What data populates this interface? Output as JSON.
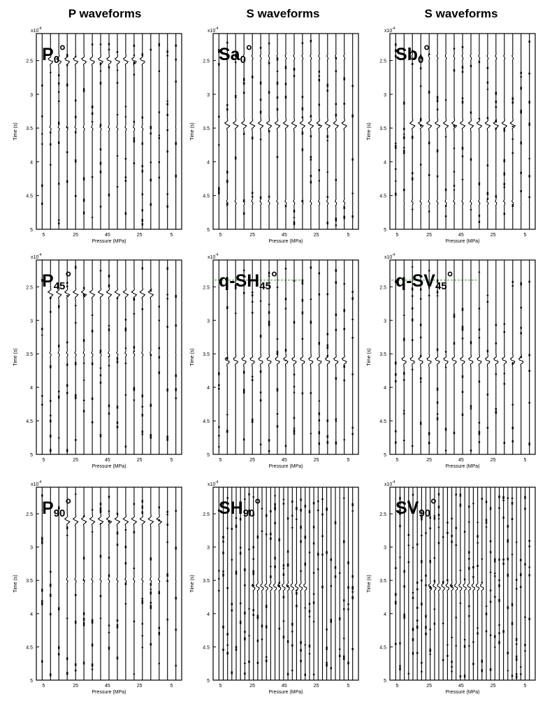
{
  "column_titles": [
    "P waveforms",
    "S waveforms",
    "S waveforms"
  ],
  "chart_data": [
    {
      "type": "line",
      "title_main": "P",
      "title_sub": "0",
      "title_deg": "°",
      "exponent": "x10",
      "exponent_power": "-4",
      "ylabel": "Time (s)",
      "xlabel": "Pressure (MPa)",
      "ylim": [
        2.1,
        5
      ],
      "yticks": [
        "2.5",
        "3",
        "3.5",
        "4",
        "4.5",
        "5"
      ],
      "xtick_labels": [
        "5",
        "25",
        "45",
        "25",
        "5"
      ],
      "arrival": 2.5,
      "reference_line": null,
      "traces": 17,
      "active_trace_range": [
        1,
        12
      ],
      "secondary": [
        {
          "t": 3.5,
          "amp": 0.3
        }
      ]
    },
    {
      "type": "line",
      "title_main": "Sa",
      "title_sub": "0",
      "title_deg": "°",
      "exponent": "x10",
      "exponent_power": "-4",
      "ylabel": "Time (s)",
      "xlabel": "Pressure (MPa)",
      "ylim": [
        2.1,
        5
      ],
      "yticks": [
        "2.5",
        "3",
        "3.5",
        "4",
        "4.5",
        "5"
      ],
      "xtick_labels": [
        "5",
        "25",
        "45",
        "25",
        "5"
      ],
      "arrival": 3.45,
      "reference_line": null,
      "traces": 17,
      "active_trace_range": [
        1,
        15
      ],
      "secondary": [
        {
          "t": 2.45,
          "amp": 0.25
        },
        {
          "t": 4.6,
          "amp": 0.3
        }
      ]
    },
    {
      "type": "line",
      "title_main": "Sb",
      "title_sub": "0",
      "title_deg": "°",
      "exponent": "x10",
      "exponent_power": "-4",
      "ylabel": "Time (s)",
      "xlabel": "Pressure (MPa)",
      "ylim": [
        2.1,
        5
      ],
      "yticks": [
        "2.5",
        "3",
        "3.5",
        "4",
        "4.5",
        "5"
      ],
      "xtick_labels": [
        "5",
        "25",
        "45",
        "25",
        "5"
      ],
      "arrival": 3.45,
      "reference_line": null,
      "traces": 17,
      "active_trace_range": [
        2,
        14
      ],
      "secondary": [
        {
          "t": 2.45,
          "amp": 0.25
        },
        {
          "t": 4.6,
          "amp": 0.3
        }
      ]
    },
    {
      "type": "line",
      "title_main": "P",
      "title_sub": "45",
      "title_deg": "°",
      "exponent": "x10",
      "exponent_power": "-4",
      "ylabel": "Time (s)",
      "xlabel": "Pressure (MPa)",
      "ylim": [
        2.1,
        5
      ],
      "yticks": [
        "2.5",
        "3",
        "3.5",
        "4",
        "4.5",
        "5"
      ],
      "xtick_labels": [
        "5",
        "25",
        "45",
        "25",
        "5"
      ],
      "arrival": 2.6,
      "reference_line": null,
      "traces": 17,
      "active_trace_range": [
        1,
        13
      ],
      "secondary": [
        {
          "t": 3.5,
          "amp": 0.3
        }
      ]
    },
    {
      "type": "line",
      "title_main": "q-SH",
      "title_sub": "45",
      "title_deg": "°",
      "exponent": "x10",
      "exponent_power": "-4",
      "ylabel": "Time (s)",
      "xlabel": "Pressure (MPa)",
      "ylim": [
        2.1,
        5
      ],
      "yticks": [
        "2.5",
        "3",
        "3.5",
        "4",
        "4.5",
        "5"
      ],
      "xtick_labels": [
        "5",
        "25",
        "45",
        "25",
        "5"
      ],
      "arrival": 3.6,
      "reference_line": 2.4,
      "traces": 17,
      "active_trace_range": [
        1,
        15
      ],
      "secondary": []
    },
    {
      "type": "line",
      "title_main": "q-SV",
      "title_sub": "45",
      "title_deg": "°",
      "exponent": "x10",
      "exponent_power": "-4",
      "ylabel": "Time (s)",
      "xlabel": "Pressure (MPa)",
      "ylim": [
        2.1,
        5
      ],
      "yticks": [
        "2.5",
        "3",
        "3.5",
        "4",
        "4.5",
        "5"
      ],
      "xtick_labels": [
        "5",
        "25",
        "45",
        "25",
        "5"
      ],
      "arrival": 3.6,
      "reference_line": 2.4,
      "traces": 17,
      "active_trace_range": [
        1,
        15
      ],
      "secondary": []
    },
    {
      "type": "line",
      "title_main": "P",
      "title_sub": "90",
      "title_deg": "°",
      "exponent": "x10",
      "exponent_power": "-4",
      "ylabel": "Time (s)",
      "xlabel": "Pressure (MPa)",
      "ylim": [
        2.1,
        5
      ],
      "yticks": [
        "2.5",
        "3",
        "3.5",
        "4",
        "4.5",
        "5"
      ],
      "xtick_labels": [
        "5",
        "25",
        "45",
        "25",
        "5"
      ],
      "arrival": 2.6,
      "reference_line": null,
      "traces": 17,
      "active_trace_range": [
        3,
        14
      ],
      "secondary": [
        {
          "t": 3.5,
          "amp": 0.3
        }
      ]
    },
    {
      "type": "line",
      "title_main": "SH",
      "title_sub": "90",
      "title_deg": "°",
      "exponent": "x10",
      "exponent_power": "-4",
      "ylabel": "Time (s)",
      "xlabel": "Pressure (MPa)",
      "ylim": [
        2.1,
        5
      ],
      "yticks": [
        "2.5",
        "3",
        "3.5",
        "4",
        "4.5",
        "5"
      ],
      "xtick_labels": [
        "5",
        "25",
        "45",
        "25",
        "5"
      ],
      "arrival": 3.6,
      "reference_line": null,
      "traces": 32,
      "active_trace_range": [
        8,
        20
      ],
      "secondary": []
    },
    {
      "type": "line",
      "title_main": "SV",
      "title_sub": "90",
      "title_deg": "°",
      "exponent": "x10",
      "exponent_power": "-4",
      "ylabel": "Time (s)",
      "xlabel": "Pressure (MPa)",
      "ylim": [
        2.1,
        5
      ],
      "yticks": [
        "2.5",
        "3",
        "3.5",
        "4",
        "4.5",
        "5"
      ],
      "xtick_labels": [
        "5",
        "25",
        "45",
        "25",
        "5"
      ],
      "arrival": 3.6,
      "reference_line": null,
      "traces": 32,
      "active_trace_range": [
        8,
        20
      ],
      "secondary": []
    }
  ],
  "colors": {
    "trace": "#000000",
    "reference_line": "#2e9e2e"
  }
}
